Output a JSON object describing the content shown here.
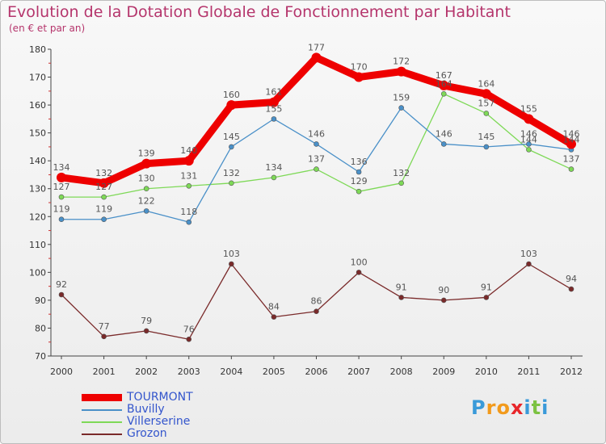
{
  "header": {
    "title": "Evolution de la Dotation Globale de Fonctionnement par Habitant",
    "subtitle": "(en € et par an)"
  },
  "logo": {
    "letters": [
      "P",
      "r",
      "o",
      "x",
      "i",
      "t",
      "i"
    ],
    "colors": [
      "#3a9ad9",
      "#f29a1c",
      "#f29a1c",
      "#e8262a",
      "#3a9ad9",
      "#7cc242",
      "#3a9ad9"
    ]
  },
  "chart_data": {
    "type": "line",
    "title": "Evolution de la Dotation Globale de Fonctionnement par Habitant",
    "subtitle": "(en € et par an)",
    "xlabel": "",
    "ylabel": "",
    "ylim": [
      70,
      180
    ],
    "yticks": [
      70,
      80,
      90,
      100,
      110,
      120,
      130,
      140,
      150,
      160,
      170,
      180
    ],
    "x": [
      "2000",
      "2001",
      "2002",
      "2003",
      "2004",
      "2005",
      "2006",
      "2007",
      "2008",
      "2009",
      "2010",
      "2011",
      "2012"
    ],
    "grid": false,
    "legend_position": "bottom-left",
    "series": [
      {
        "name": "TOURMONT",
        "color": "#ee0000",
        "values": [
          134,
          132,
          139,
          140,
          160,
          161,
          177,
          170,
          172,
          167,
          164,
          155,
          146
        ]
      },
      {
        "name": "Buvilly",
        "color": "#4a90c8",
        "values": [
          119,
          119,
          122,
          118,
          145,
          155,
          146,
          136,
          159,
          146,
          145,
          146,
          144
        ]
      },
      {
        "name": "Villerserine",
        "color": "#7ed957",
        "values": [
          127,
          127,
          130,
          131,
          132,
          134,
          137,
          129,
          132,
          164,
          157,
          144,
          137
        ]
      },
      {
        "name": "Grozon",
        "color": "#7a2a2a",
        "values": [
          92,
          77,
          79,
          76,
          103,
          84,
          86,
          100,
          91,
          90,
          91,
          103,
          94
        ]
      }
    ]
  }
}
